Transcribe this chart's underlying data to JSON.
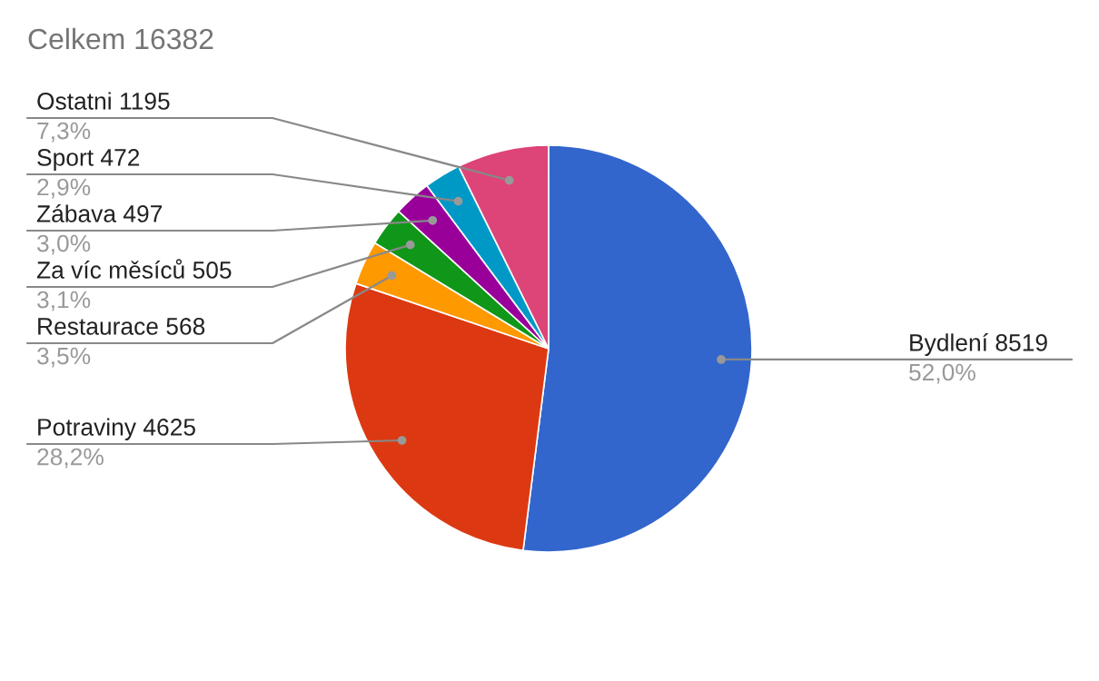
{
  "chart_data": {
    "type": "pie",
    "title": "Celkem 16382",
    "categories": [
      "Bydlení 8519",
      "Potraviny 4625",
      "Restaurace 568",
      "Za víc měsíců 505",
      "Zábava 497",
      "Sport 472",
      "Ostatni 1195"
    ],
    "values": [
      52.0,
      28.2,
      3.5,
      3.1,
      3.0,
      2.9,
      7.3
    ],
    "colors": [
      "#3366cc",
      "#dc3912",
      "#ff9900",
      "#109618",
      "#990099",
      "#0099c6",
      "#dd4477"
    ],
    "value_labels": [
      "52,0%",
      "28,2%",
      "3,5%",
      "3,1%",
      "3,0%",
      "2,9%",
      "7,3%"
    ]
  }
}
